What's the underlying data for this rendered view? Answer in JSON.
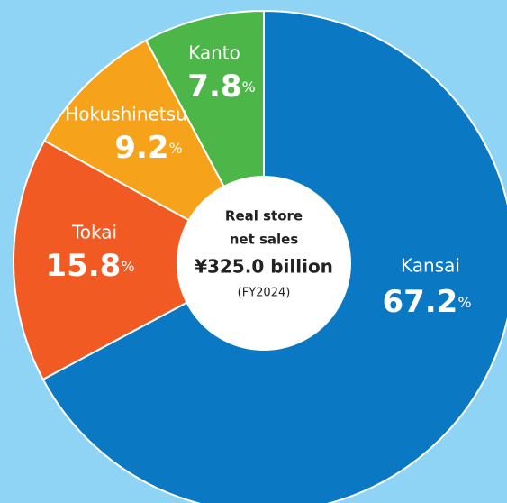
{
  "chart_data": {
    "type": "pie",
    "categories": [
      "Kansai",
      "Tokai",
      "Hokushinetsu",
      "Kanto"
    ],
    "values": [
      67.2,
      15.8,
      9.2,
      7.8
    ],
    "value_labels": [
      "67.2%",
      "15.8%",
      "9.2%",
      "7.8%"
    ],
    "colors": [
      "#0a78c3",
      "#f15a22",
      "#f7a21b",
      "#4cb748"
    ],
    "center_text": [
      "Real store",
      "net sales",
      "¥325.0 billion",
      "(FY2024)"
    ]
  }
}
